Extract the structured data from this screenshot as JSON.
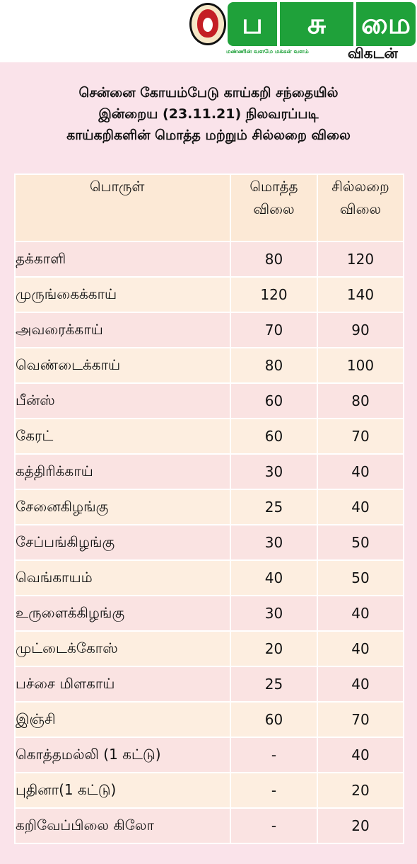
{
  "header": {
    "logo_emblem": "vikatan-mascot-emblem",
    "logo_tiles": [
      "ப",
      "சு",
      "மை"
    ],
    "tagline": "மண்ணின் வளமே மக்கள் வளம்",
    "brand": "விகடன்",
    "colors": {
      "logo_green": "#1fa13a",
      "emblem_red": "#c41e25"
    }
  },
  "title": {
    "line1": "சென்னை கோயம்பேடு காய்கறி சந்தையில்",
    "line2": "இன்றைய (23.11.21) நிலவரப்படி",
    "line3": "காய்கறிகளின் மொத்த மற்றும் சில்லறை விலை"
  },
  "table": {
    "headers": {
      "product": "பொருள்",
      "wholesale_1": "மொத்த",
      "wholesale_2": "விலை",
      "retail_1": "சில்லறை",
      "retail_2": "விலை"
    },
    "rows": [
      {
        "name": "தக்காளி",
        "wholesale": "80",
        "retail": "120"
      },
      {
        "name": "முருங்கைக்காய்",
        "wholesale": "120",
        "retail": "140"
      },
      {
        "name": "அவரைக்காய்",
        "wholesale": "70",
        "retail": "90"
      },
      {
        "name": "வெண்டைக்காய்",
        "wholesale": "80",
        "retail": "100"
      },
      {
        "name": "பீன்ஸ்",
        "wholesale": "60",
        "retail": "80"
      },
      {
        "name": "கேரட்",
        "wholesale": "60",
        "retail": "70"
      },
      {
        "name": "கத்திரிக்காய்",
        "wholesale": "30",
        "retail": "40"
      },
      {
        "name": "சேனைகிழங்கு",
        "wholesale": "25",
        "retail": "40"
      },
      {
        "name": "சேப்பங்கிழங்கு",
        "wholesale": "30",
        "retail": "50"
      },
      {
        "name": "வெங்காயம்",
        "wholesale": "40",
        "retail": "50"
      },
      {
        "name": "உருளைக்கிழங்கு",
        "wholesale": "30",
        "retail": "40"
      },
      {
        "name": "முட்டைக்கோஸ்",
        "wholesale": "20",
        "retail": "40"
      },
      {
        "name": "பச்சை மிளகாய்",
        "wholesale": "25",
        "retail": "40"
      },
      {
        "name": "இஞ்சி",
        "wholesale": "60",
        "retail": "70"
      },
      {
        "name": "கொத்தமல்லி (1 கட்டு)",
        "wholesale": "-",
        "retail": "40"
      },
      {
        "name": "புதினா(1 கட்டு)",
        "wholesale": "-",
        "retail": "20"
      },
      {
        "name": "கறிவேப்பிலை கிலோ",
        "wholesale": "-",
        "retail": "20"
      }
    ]
  }
}
